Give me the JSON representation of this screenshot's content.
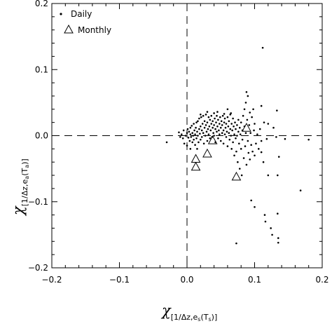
{
  "chart_data": {
    "type": "scatter",
    "xlim": [
      -0.2,
      0.2
    ],
    "ylim": [
      -0.2,
      0.2
    ],
    "xticks": [
      -0.2,
      -0.1,
      0.0,
      0.1,
      0.2
    ],
    "yticks": [
      -0.2,
      -0.1,
      0.0,
      0.1,
      0.2
    ],
    "xtick_labels": [
      "−0.2",
      "−0.1",
      "0.0",
      "0.1",
      "0.2"
    ],
    "ytick_labels": [
      "−0.2",
      "−0.1",
      "0.0",
      "0.1",
      "0.2"
    ],
    "xlabel": {
      "symbol": "χ",
      "open": "[1/Δz,e",
      "sub": "s",
      "mid": "(T",
      "subsub": "s",
      "close": ")]"
    },
    "ylabel": {
      "symbol": "χ",
      "open": "[1/Δz,e",
      "sub": "a",
      "mid": "(T",
      "subsub": "a",
      "close": ")]"
    },
    "grid": false,
    "reference_lines": [
      {
        "orientation": "horizontal",
        "value": 0.0,
        "style": "dashed"
      },
      {
        "orientation": "vertical",
        "value": 0.0,
        "style": "dashed"
      }
    ],
    "legend": {
      "placement": "top-left",
      "entries": [
        {
          "label": "Daily",
          "marker": "dot"
        },
        {
          "label": "Monthly",
          "marker": "triangle"
        }
      ]
    },
    "series": [
      {
        "name": "Daily",
        "marker": "dot",
        "points": [
          [
            -0.03,
            -0.01
          ],
          [
            -0.012,
            0.005
          ],
          [
            -0.01,
            -0.002
          ],
          [
            -0.008,
            0.002
          ],
          [
            -0.006,
            -0.004
          ],
          [
            -0.005,
            0.008
          ],
          [
            -0.004,
            -0.012
          ],
          [
            -0.002,
            0.0
          ],
          [
            0.0,
            0.004
          ],
          [
            0.0,
            -0.015
          ],
          [
            0.001,
            0.01
          ],
          [
            0.002,
            -0.003
          ],
          [
            0.003,
            0.006
          ],
          [
            0.004,
            -0.008
          ],
          [
            0.005,
            0.012
          ],
          [
            0.005,
            0.002
          ],
          [
            0.006,
            -0.002
          ],
          [
            0.007,
            0.015
          ],
          [
            0.008,
            -0.01
          ],
          [
            0.008,
            0.004
          ],
          [
            0.009,
            0.0
          ],
          [
            0.01,
            0.018
          ],
          [
            0.01,
            -0.006
          ],
          [
            0.011,
            0.008
          ],
          [
            0.012,
            0.002
          ],
          [
            0.012,
            -0.014
          ],
          [
            0.013,
            0.012
          ],
          [
            0.014,
            0.02
          ],
          [
            0.014,
            -0.004
          ],
          [
            0.015,
            0.006
          ],
          [
            0.016,
            0.0
          ],
          [
            0.016,
            0.022
          ],
          [
            0.017,
            -0.01
          ],
          [
            0.018,
            0.01
          ],
          [
            0.018,
            0.026
          ],
          [
            0.019,
            0.003
          ],
          [
            0.02,
            -0.006
          ],
          [
            0.02,
            0.014
          ],
          [
            0.021,
            0.028
          ],
          [
            0.022,
            0.008
          ],
          [
            0.022,
            -0.002
          ],
          [
            0.023,
            0.018
          ],
          [
            0.024,
            0.03
          ],
          [
            0.024,
            0.004
          ],
          [
            0.025,
            -0.012
          ],
          [
            0.026,
            0.012
          ],
          [
            0.026,
            0.022
          ],
          [
            0.027,
            0.0
          ],
          [
            0.028,
            0.016
          ],
          [
            0.028,
            0.032
          ],
          [
            0.029,
            0.006
          ],
          [
            0.03,
            -0.008
          ],
          [
            0.03,
            0.02
          ],
          [
            0.031,
            0.01
          ],
          [
            0.032,
            0.028
          ],
          [
            0.032,
            0.002
          ],
          [
            0.033,
            0.014
          ],
          [
            0.034,
            -0.004
          ],
          [
            0.034,
            0.024
          ],
          [
            0.035,
            0.008
          ],
          [
            0.036,
            0.018
          ],
          [
            0.036,
            0.03
          ],
          [
            0.037,
            -0.002
          ],
          [
            0.038,
            0.012
          ],
          [
            0.038,
            0.022
          ],
          [
            0.039,
            0.004
          ],
          [
            0.04,
            0.016
          ],
          [
            0.04,
            0.0
          ],
          [
            0.041,
            0.026
          ],
          [
            0.042,
            0.01
          ],
          [
            0.042,
            -0.01
          ],
          [
            0.043,
            0.02
          ],
          [
            0.044,
            0.006
          ],
          [
            0.044,
            0.03
          ],
          [
            0.045,
            0.014
          ],
          [
            0.046,
            -0.004
          ],
          [
            0.046,
            0.024
          ],
          [
            0.047,
            0.008
          ],
          [
            0.048,
            0.018
          ],
          [
            0.048,
            0.002
          ],
          [
            0.049,
            0.028
          ],
          [
            0.05,
            0.012
          ],
          [
            0.05,
            -0.008
          ],
          [
            0.051,
            0.022
          ],
          [
            0.052,
            0.004
          ],
          [
            0.052,
            0.016
          ],
          [
            0.053,
            0.03
          ],
          [
            0.054,
            0.008
          ],
          [
            0.054,
            -0.012
          ],
          [
            0.055,
            0.02
          ],
          [
            0.056,
            0.002
          ],
          [
            0.056,
            0.026
          ],
          [
            0.057,
            0.012
          ],
          [
            0.058,
            -0.002
          ],
          [
            0.058,
            0.018
          ],
          [
            0.059,
            0.006
          ],
          [
            0.06,
            0.028
          ],
          [
            0.06,
            -0.016
          ],
          [
            0.061,
            0.014
          ],
          [
            0.062,
            0.004
          ],
          [
            0.062,
            0.022
          ],
          [
            0.063,
            -0.006
          ],
          [
            0.064,
            0.01
          ],
          [
            0.064,
            0.032
          ],
          [
            0.065,
            0.0
          ],
          [
            0.066,
            0.018
          ],
          [
            0.066,
            -0.02
          ],
          [
            0.067,
            0.008
          ],
          [
            0.068,
            0.026
          ],
          [
            0.068,
            -0.01
          ],
          [
            0.069,
            0.014
          ],
          [
            0.07,
            0.002
          ],
          [
            0.07,
            -0.03
          ],
          [
            0.071,
            0.02
          ],
          [
            0.072,
            -0.004
          ],
          [
            0.072,
            0.01
          ],
          [
            0.073,
            -0.024
          ],
          [
            0.074,
            0.016
          ],
          [
            0.074,
            0.0
          ],
          [
            0.075,
            -0.04
          ],
          [
            0.076,
            0.006
          ],
          [
            0.076,
            0.024
          ],
          [
            0.077,
            -0.012
          ],
          [
            0.078,
            0.012
          ],
          [
            0.078,
            -0.05
          ],
          [
            0.079,
            0.002
          ],
          [
            0.08,
            0.02
          ],
          [
            0.08,
            -0.02
          ],
          [
            0.081,
            -0.06
          ],
          [
            0.082,
            0.008
          ],
          [
            0.082,
            -0.006
          ],
          [
            0.083,
            0.03
          ],
          [
            0.084,
            -0.034
          ],
          [
            0.085,
            0.04
          ],
          [
            0.085,
            0.014
          ],
          [
            0.086,
            -0.016
          ],
          [
            0.087,
            0.05
          ],
          [
            0.087,
            0.004
          ],
          [
            0.088,
            -0.044
          ],
          [
            0.088,
            0.066
          ],
          [
            0.089,
            0.024
          ],
          [
            0.09,
            -0.008
          ],
          [
            0.09,
            0.06
          ],
          [
            0.091,
            -0.026
          ],
          [
            0.092,
            0.016
          ],
          [
            0.093,
            -0.036
          ],
          [
            0.094,
            0.004
          ],
          [
            0.095,
            -0.014
          ],
          [
            0.096,
            0.028
          ],
          [
            0.097,
            -0.024
          ],
          [
            0.098,
            0.04
          ],
          [
            0.099,
            0.008
          ],
          [
            0.1,
            -0.03
          ],
          [
            0.1,
            0.018
          ],
          [
            0.102,
            -0.012
          ],
          [
            0.104,
            0.002
          ],
          [
            0.106,
            -0.02
          ],
          [
            0.108,
            0.01
          ],
          [
            0.11,
            -0.008
          ],
          [
            0.11,
            0.045
          ],
          [
            0.112,
            0.133
          ],
          [
            0.113,
            -0.04
          ],
          [
            0.114,
            0.02
          ],
          [
            0.115,
            -0.12
          ],
          [
            0.116,
            -0.13
          ],
          [
            0.118,
            -0.005
          ],
          [
            0.12,
            -0.06
          ],
          [
            0.124,
            -0.14
          ],
          [
            0.126,
            -0.15
          ],
          [
            0.128,
            0.012
          ],
          [
            0.132,
            -0.002
          ],
          [
            0.133,
            0.038
          ],
          [
            0.134,
            -0.06
          ],
          [
            0.134,
            -0.118
          ],
          [
            0.135,
            -0.155
          ],
          [
            0.135,
            -0.162
          ],
          [
            0.136,
            -0.032
          ],
          [
            0.145,
            -0.005
          ],
          [
            0.168,
            -0.083
          ],
          [
            0.18,
            -0.006
          ],
          [
            0.095,
            -0.098
          ],
          [
            0.1,
            -0.108
          ],
          [
            0.073,
            -0.163
          ],
          [
            0.11,
            -0.025
          ],
          [
            0.093,
            0.035
          ],
          [
            0.12,
            0.018
          ],
          [
            0.065,
            0.034
          ],
          [
            0.055,
            0.033
          ],
          [
            0.045,
            0.036
          ],
          [
            0.015,
            -0.02
          ],
          [
            0.005,
            -0.02
          ],
          [
            0.02,
            0.032
          ],
          [
            0.03,
            0.036
          ],
          [
            0.04,
            0.034
          ],
          [
            0.06,
            0.04
          ]
        ]
      },
      {
        "name": "Monthly",
        "marker": "triangle",
        "points": [
          [
            0.013,
            -0.035
          ],
          [
            0.013,
            -0.047
          ],
          [
            0.03,
            -0.027
          ],
          [
            0.038,
            -0.007
          ],
          [
            0.073,
            -0.062
          ],
          [
            0.088,
            0.012
          ]
        ]
      }
    ]
  }
}
